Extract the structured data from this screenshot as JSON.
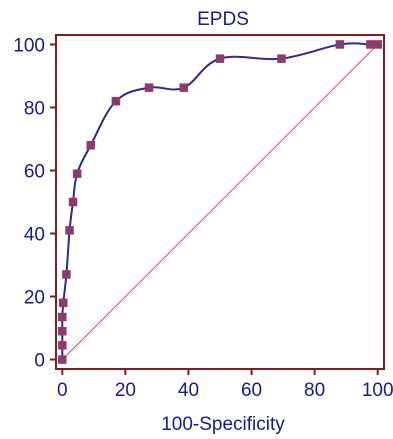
{
  "chart_data": {
    "type": "line",
    "title": "EPDS",
    "xlabel": "100-Specificity",
    "ylabel": "",
    "xlim": [
      -2,
      102
    ],
    "ylim": [
      -3,
      103
    ],
    "x_ticks": [
      0,
      20,
      40,
      60,
      80,
      100
    ],
    "y_ticks": [
      0,
      20,
      40,
      60,
      80,
      100
    ],
    "grid": false,
    "legend": "none",
    "series": [
      {
        "name": "",
        "points": [
          {
            "x": 0,
            "y": 0
          },
          {
            "x": 0,
            "y": 4.5
          },
          {
            "x": 0,
            "y": 9
          },
          {
            "x": 0,
            "y": 13.5
          },
          {
            "x": 0.3,
            "y": 18
          },
          {
            "x": 1.3,
            "y": 27
          },
          {
            "x": 2.3,
            "y": 41
          },
          {
            "x": 3.4,
            "y": 50
          },
          {
            "x": 4.7,
            "y": 59
          },
          {
            "x": 9,
            "y": 68
          },
          {
            "x": 17,
            "y": 82
          },
          {
            "x": 27.5,
            "y": 86.3
          },
          {
            "x": 38.5,
            "y": 86.3
          },
          {
            "x": 50,
            "y": 95.5
          },
          {
            "x": 69.5,
            "y": 95.5
          },
          {
            "x": 88,
            "y": 100
          },
          {
            "x": 97.7,
            "y": 100
          },
          {
            "x": 100,
            "y": 100
          }
        ]
      }
    ],
    "reference_line": {
      "from": [
        0,
        0
      ],
      "to": [
        100,
        100
      ]
    },
    "colors": {
      "frame": "#7a1f1f",
      "curve": "#2b2b8c",
      "marker": "#8e3a6e",
      "diagonal": "#cc3333",
      "text": "#1a1a8c"
    }
  }
}
